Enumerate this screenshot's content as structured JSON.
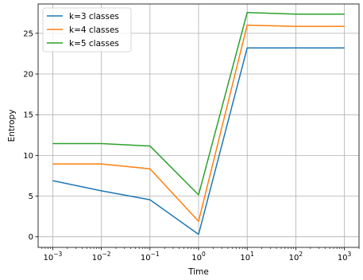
{
  "chart_data": {
    "type": "line",
    "title": "",
    "xlabel": "Time",
    "ylabel": "Entropy",
    "x": [
      0.001,
      0.01,
      0.1,
      1,
      10,
      100,
      1000
    ],
    "xscale": "log",
    "xlim": [
      0.0005,
      2000
    ],
    "ylim": [
      -1.3,
      28.6
    ],
    "grid": true,
    "legend_position": "upper left",
    "x_ticks": [
      {
        "value": 0.001,
        "base": "10",
        "exp": "−3"
      },
      {
        "value": 0.01,
        "base": "10",
        "exp": "−2"
      },
      {
        "value": 0.1,
        "base": "10",
        "exp": "−1"
      },
      {
        "value": 1,
        "base": "10",
        "exp": "0"
      },
      {
        "value": 10,
        "base": "10",
        "exp": "1"
      },
      {
        "value": 100,
        "base": "10",
        "exp": "2"
      },
      {
        "value": 1000,
        "base": "10",
        "exp": "3"
      }
    ],
    "y_ticks": [
      {
        "value": 0,
        "label": "0"
      },
      {
        "value": 5,
        "label": "5"
      },
      {
        "value": 10,
        "label": "10"
      },
      {
        "value": 15,
        "label": "15"
      },
      {
        "value": 20,
        "label": "20"
      },
      {
        "value": 25,
        "label": "25"
      }
    ],
    "series": [
      {
        "name": "k=3 classes",
        "color": "#1f77b4",
        "values": [
          6.9,
          5.65,
          4.55,
          0.3,
          23.2,
          23.2,
          23.2
        ]
      },
      {
        "name": "k=4 classes",
        "color": "#ff7f0e",
        "values": [
          8.95,
          8.95,
          8.35,
          1.9,
          26.0,
          25.85,
          25.85
        ]
      },
      {
        "name": "k=5 classes",
        "color": "#2ca02c",
        "values": [
          11.45,
          11.45,
          11.15,
          5.15,
          27.55,
          27.35,
          27.35
        ]
      }
    ]
  }
}
